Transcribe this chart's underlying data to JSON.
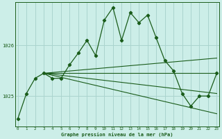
{
  "title": "Graphe pression niveau de la mer (hPa)",
  "background_color": "#cceee8",
  "grid_color": "#aad4ce",
  "line_color": "#1a5c1a",
  "x_ticks": [
    0,
    1,
    2,
    3,
    4,
    5,
    6,
    7,
    8,
    9,
    10,
    11,
    12,
    13,
    14,
    15,
    16,
    17,
    18,
    19,
    20,
    21,
    22,
    23
  ],
  "y_ticks": [
    1025,
    1026
  ],
  "xlim": [
    -0.3,
    23.3
  ],
  "ylim": [
    1024.4,
    1026.85
  ],
  "main_series": {
    "x": [
      0,
      1,
      2,
      3,
      4,
      5,
      6,
      7,
      8,
      9,
      10,
      11,
      12,
      13,
      14,
      15,
      16,
      17,
      18,
      19,
      20,
      21,
      22,
      23
    ],
    "y": [
      1024.55,
      1025.05,
      1025.35,
      1025.45,
      1025.35,
      1025.35,
      1025.62,
      1025.85,
      1026.1,
      1025.8,
      1026.5,
      1026.75,
      1026.1,
      1026.65,
      1026.45,
      1026.6,
      1026.15,
      1025.7,
      1025.5,
      1025.05,
      1024.8,
      1025.0,
      1025.0,
      1025.45
    ]
  },
  "extra_lines": [
    {
      "x": [
        3,
        23
      ],
      "y": [
        1025.45,
        1025.45
      ]
    },
    {
      "x": [
        3,
        23
      ],
      "y": [
        1025.45,
        1025.75
      ]
    },
    {
      "x": [
        3,
        23
      ],
      "y": [
        1025.45,
        1025.05
      ]
    },
    {
      "x": [
        3,
        23
      ],
      "y": [
        1025.45,
        1024.65
      ]
    }
  ]
}
